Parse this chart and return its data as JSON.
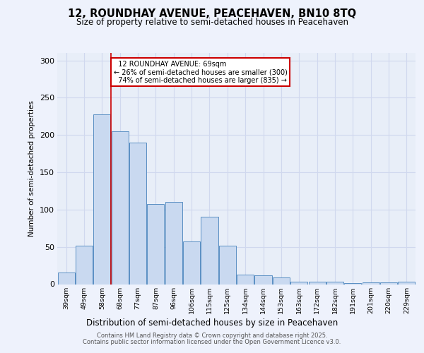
{
  "title1": "12, ROUNDHAY AVENUE, PEACEHAVEN, BN10 8TQ",
  "title2": "Size of property relative to semi-detached houses in Peacehaven",
  "xlabel": "Distribution of semi-detached houses by size in Peacehaven",
  "ylabel": "Number of semi-detached properties",
  "categories": [
    "39sqm",
    "49sqm",
    "58sqm",
    "68sqm",
    "77sqm",
    "87sqm",
    "96sqm",
    "106sqm",
    "115sqm",
    "125sqm",
    "134sqm",
    "144sqm",
    "153sqm",
    "163sqm",
    "172sqm",
    "182sqm",
    "191sqm",
    "201sqm",
    "220sqm",
    "229sqm"
  ],
  "values": [
    16,
    52,
    228,
    205,
    190,
    107,
    110,
    57,
    90,
    52,
    13,
    12,
    9,
    3,
    3,
    3,
    1,
    2,
    2,
    3
  ],
  "bar_color": "#c9d9f0",
  "bar_edge_color": "#5a8fc3",
  "highlight_bar_index": 3,
  "highlight_line_color": "#cc0000",
  "property_label": "12 ROUNDHAY AVENUE: 69sqm",
  "pct_smaller": 26,
  "pct_smaller_count": 300,
  "pct_larger": 74,
  "pct_larger_count": 835,
  "annotation_box_color": "#ffffff",
  "annotation_box_edge_color": "#cc0000",
  "ylim": [
    0,
    310
  ],
  "yticks": [
    0,
    50,
    100,
    150,
    200,
    250,
    300
  ],
  "grid_color": "#d0d8ee",
  "background_color": "#e8eef8",
  "fig_background": "#eef2fc",
  "footer1": "Contains HM Land Registry data © Crown copyright and database right 2025.",
  "footer2": "Contains public sector information licensed under the Open Government Licence v3.0."
}
